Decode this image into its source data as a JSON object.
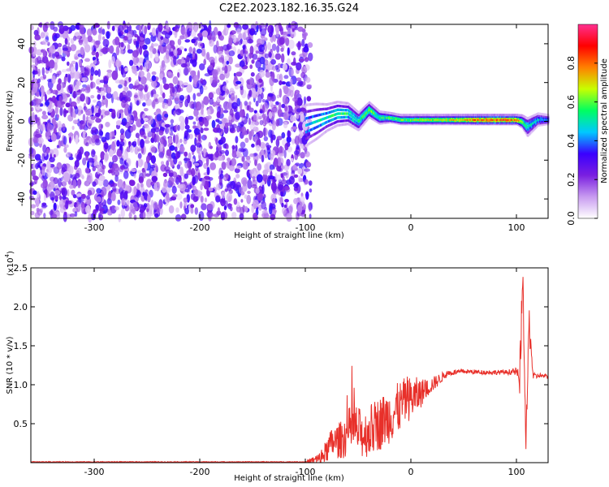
{
  "title": "C2E2.2023.182.16.35.G24",
  "chart_data": [
    {
      "type": "heatmap",
      "xlabel": "Height of straight line (km)",
      "ylabel": "Frequency (Hz)",
      "xlim": [
        -360,
        130
      ],
      "ylim": [
        -50,
        50
      ],
      "x_ticks": [
        -300,
        -200,
        -100,
        0,
        100
      ],
      "x_tick_labels": [
        "-300",
        "-200",
        "-100",
        "0",
        "100"
      ],
      "y_ticks": [
        40,
        20,
        0,
        -20,
        -40
      ],
      "y_tick_labels": [
        "40",
        "20",
        "0",
        "-20",
        "-40"
      ],
      "colorbar": {
        "label": "Normalized spectral amplitude",
        "range": [
          0.0,
          1.0
        ],
        "ticks": [
          0.0,
          0.2,
          0.4,
          0.6,
          0.8
        ],
        "tick_labels": [
          "0.0",
          "0.2",
          "0.4",
          "0.6",
          "0.8"
        ],
        "colormap": [
          "#ffffff",
          "#c89bf0",
          "#7a1fe0",
          "#3a00ff",
          "#00c8ff",
          "#00ff60",
          "#c8ff00",
          "#ff8000",
          "#ff0000",
          "#ff3090"
        ]
      },
      "noise_region": {
        "x_range": [
          -360,
          -95
        ],
        "freq_range": [
          -50,
          50
        ],
        "typical_amplitude": [
          0.05,
          0.35
        ]
      },
      "signal_track": {
        "x": [
          -100,
          -90,
          -80,
          -70,
          -60,
          -50,
          -40,
          -30,
          -20,
          -10,
          0,
          10,
          20,
          40,
          60,
          80,
          100,
          105,
          110,
          120,
          130
        ],
        "freq": [
          -2,
          0,
          2,
          4,
          4,
          0,
          6,
          2,
          2,
          1,
          1,
          1,
          1,
          1,
          1,
          1,
          1,
          0,
          -3,
          1,
          1
        ],
        "amplitude": [
          0.45,
          0.48,
          0.5,
          0.55,
          0.55,
          0.5,
          0.6,
          0.55,
          0.6,
          0.6,
          0.62,
          0.65,
          0.65,
          0.7,
          0.8,
          0.85,
          0.8,
          0.6,
          0.5,
          0.45,
          0.4
        ],
        "bandwidth": [
          14,
          12,
          9,
          8,
          7,
          6,
          5,
          4,
          3,
          3,
          3,
          3,
          3,
          3,
          3,
          3,
          3,
          4,
          6,
          4,
          3
        ]
      }
    },
    {
      "type": "line",
      "xlabel": "Height of straight line (km)",
      "ylabel": "SNR (10 * v/v)",
      "scale_label": "(x10",
      "scale_exponent": "4",
      "scale_close": ")",
      "xlim": [
        -360,
        130
      ],
      "ylim": [
        0,
        2.5
      ],
      "x_ticks": [
        -300,
        -200,
        -100,
        0,
        100
      ],
      "x_tick_labels": [
        "-300",
        "-200",
        "-100",
        "0",
        "100"
      ],
      "y_ticks": [
        0.5,
        1.0,
        1.5,
        2.0,
        2.5
      ],
      "y_tick_labels": [
        "0.5",
        "1.0",
        "1.5",
        "2.0",
        "2.5"
      ],
      "color": "#e8302a",
      "x": [
        -360,
        -300,
        -200,
        -100,
        -85,
        -75,
        -65,
        -55,
        -45,
        -35,
        -25,
        -15,
        -5,
        5,
        15,
        25,
        35,
        50,
        70,
        90,
        100,
        103,
        106,
        109,
        112,
        116,
        122,
        130
      ],
      "y": [
        0.01,
        0.01,
        0.01,
        0.01,
        0.05,
        0.25,
        0.3,
        0.45,
        0.35,
        0.45,
        0.55,
        0.65,
        0.8,
        0.85,
        0.95,
        1.05,
        1.15,
        1.17,
        1.16,
        1.16,
        1.17,
        1.0,
        2.4,
        0.2,
        1.8,
        1.1,
        1.12,
        1.1
      ],
      "noise_amplitude": [
        0.005,
        0.005,
        0.005,
        0.005,
        0.1,
        0.2,
        0.25,
        0.35,
        0.3,
        0.35,
        0.35,
        0.35,
        0.3,
        0.25,
        0.12,
        0.08,
        0.04,
        0.03,
        0.03,
        0.03,
        0.05,
        0.3,
        0.2,
        0.15,
        0.25,
        0.05,
        0.03,
        0.03
      ]
    }
  ]
}
